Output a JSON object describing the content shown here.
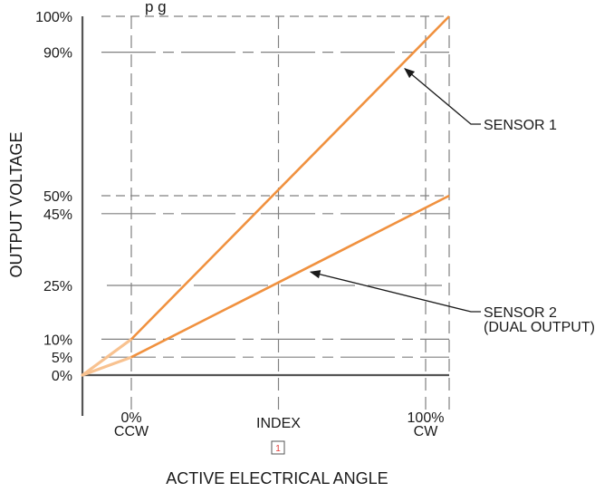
{
  "chart_data": {
    "type": "line",
    "title": "",
    "ylabel": "OUTPUT VOLTAGE",
    "xlabel": "ACTIVE ELECTRICAL ANGLE",
    "xlim": [
      -0.166,
      1.08
    ],
    "ylim": [
      0,
      100
    ],
    "x_ticks": [
      {
        "value": 0,
        "lines": [
          "0%",
          "CCW"
        ]
      },
      {
        "value": 0.5,
        "lines": [
          "INDEX"
        ]
      },
      {
        "value": 1,
        "lines": [
          "100%",
          "CW"
        ]
      }
    ],
    "y_ticks": [
      {
        "value": 0,
        "label": "0%"
      },
      {
        "value": 5,
        "label": "5%"
      },
      {
        "value": 10,
        "label": "10%"
      },
      {
        "value": 25,
        "label": "25%"
      },
      {
        "value": 45,
        "label": "45%"
      },
      {
        "value": 50,
        "label": "50%"
      },
      {
        "value": 90,
        "label": "90%"
      },
      {
        "value": 100,
        "label": "100%"
      }
    ],
    "series": [
      {
        "name": "SENSOR 1",
        "x": [
          -0.166,
          0,
          1.08
        ],
        "y": [
          0,
          10,
          100
        ],
        "pointer_x": 0.92
      },
      {
        "name": "SENSOR 2",
        "name_line2": "(DUAL OUTPUT)",
        "x": [
          -0.166,
          0,
          1.08
        ],
        "y": [
          0,
          5,
          50
        ],
        "pointer_x": 0.6
      }
    ],
    "footnote_marker": "1",
    "top_text_fragment": "p g",
    "grid": true
  },
  "colors": {
    "line": "#f0913f",
    "line_light": "#f8c290",
    "axis": "#555555",
    "grid": "#808080",
    "text": "#1a1a1a",
    "marker": "#e53935"
  }
}
